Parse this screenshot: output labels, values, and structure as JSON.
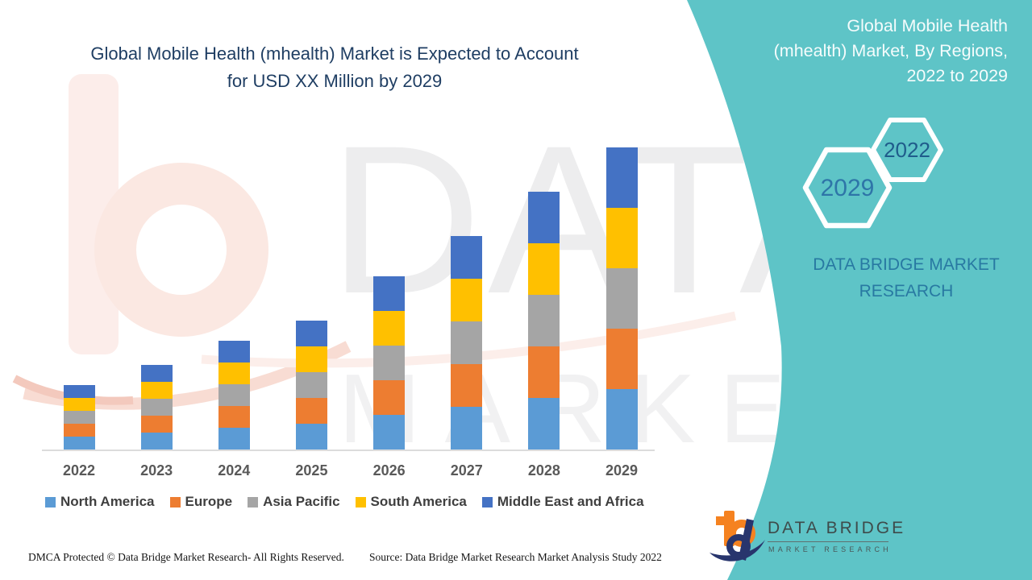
{
  "chart": {
    "title_lines": [
      "Global Mobile Health (mhealth) Market is Expected to Account",
      "for USD XX Million by 2029"
    ],
    "title_color": "#1F3E63"
  },
  "chart_data": {
    "type": "bar",
    "stacked": true,
    "title": "Global Mobile Health (mhealth) Market is Expected to Account for USD XX Million by 2029",
    "xlabel": "",
    "ylabel": "",
    "value_axis_visible": false,
    "units": "relative index (y-axis hidden; chart shows USD XX Million placeholder)",
    "grid": false,
    "legend_position": "bottom",
    "categories": [
      "2022",
      "2023",
      "2024",
      "2025",
      "2026",
      "2027",
      "2028",
      "2029"
    ],
    "stack_order_bottom_to_top": [
      "North America",
      "Europe",
      "Asia Pacific",
      "South America",
      "Middle East and Africa"
    ],
    "series": [
      {
        "name": "North America",
        "color": "#5B9BD5",
        "values": [
          16,
          21,
          27,
          32,
          43,
          53,
          64,
          75
        ]
      },
      {
        "name": "Europe",
        "color": "#ED7D31",
        "values": [
          16,
          21,
          27,
          32,
          43,
          53,
          64,
          75
        ]
      },
      {
        "name": "Asia Pacific",
        "color": "#A5A5A5",
        "values": [
          16,
          21,
          27,
          32,
          43,
          53,
          64,
          75
        ]
      },
      {
        "name": "South America",
        "color": "#FFC000",
        "values": [
          16,
          21,
          27,
          32,
          43,
          53,
          64,
          75
        ]
      },
      {
        "name": "Middle East and Africa",
        "color": "#4472C4",
        "values": [
          16,
          21,
          27,
          32,
          43,
          53,
          64,
          75
        ]
      }
    ],
    "stack_totals": [
      80,
      105,
      135,
      160,
      215,
      265,
      320,
      375
    ]
  },
  "banner": {
    "color": "#5EC4C7",
    "title_lines": [
      "Global Mobile Health",
      "(mhealth) Market, By Regions,",
      "2022 to 2029"
    ],
    "hex_small_label": "2022",
    "hex_large_label": "2029",
    "brand_text": "DATA BRIDGE MARKET RESEARCH",
    "brand_color": "#2879A2"
  },
  "watermark": {
    "line1": "DATA BRIDGE",
    "line2": "MARKET RESEARCH"
  },
  "footer": {
    "dmca": "DMCA Protected © Data Bridge Market Research- All Rights Reserved.",
    "source": "Source: Data Bridge Market Research Market Analysis Study 2022"
  },
  "logo": {
    "line1": "DATA BRIDGE",
    "line2": "MARKET RESEARCH",
    "orange": "#F58220",
    "navy": "#28356D"
  }
}
